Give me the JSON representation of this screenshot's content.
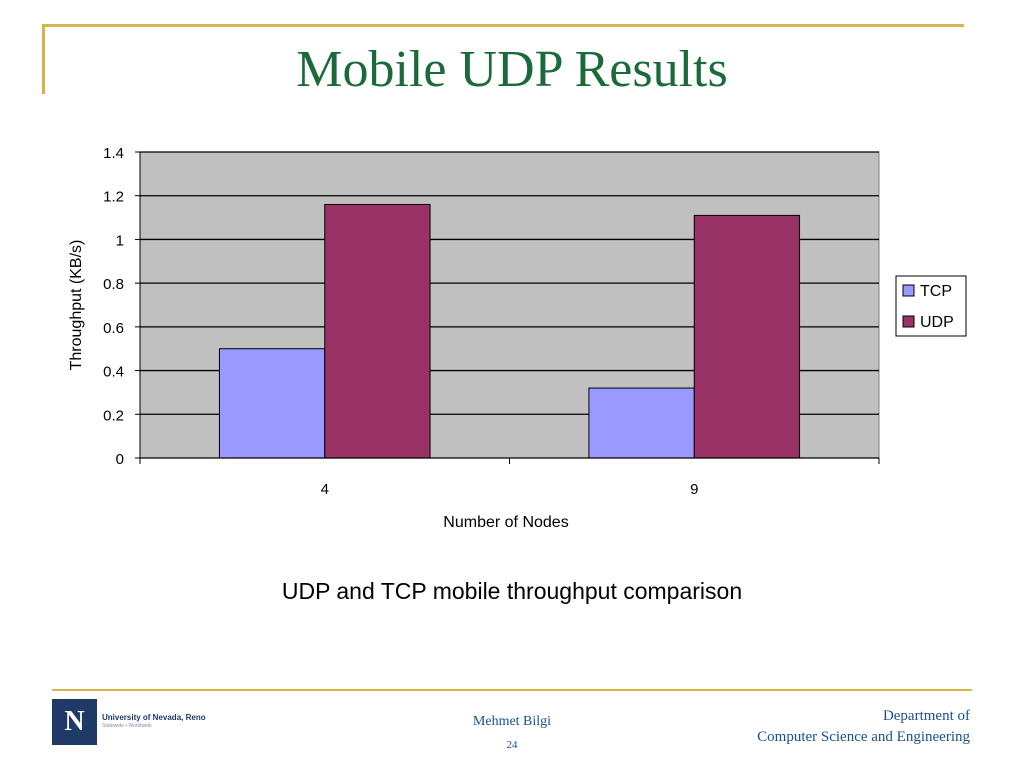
{
  "slide": {
    "title": "Mobile UDP Results",
    "caption": "UDP and TCP mobile throughput comparison"
  },
  "footer": {
    "logo_letter": "N",
    "logo_name": "University of Nevada, Reno",
    "logo_tagline": "Statewide • Worldwide",
    "presenter": "Mehmet Bilgi",
    "page_number": "24",
    "dept_line1": "Department of",
    "dept_line2": "Computer Science and Engineering"
  },
  "colors": {
    "title": "#1b6b3a",
    "accent_line": "#d9b44a",
    "footer_text": "#1a4f8f",
    "plot_background": "#c0c0c0"
  },
  "chart_data": {
    "type": "bar",
    "categories": [
      "4",
      "9"
    ],
    "series": [
      {
        "name": "TCP",
        "values": [
          0.5,
          0.32
        ],
        "color": "#9999ff"
      },
      {
        "name": "UDP",
        "values": [
          1.16,
          1.11
        ],
        "color": "#993366"
      }
    ],
    "xlabel": "Number of Nodes",
    "ylabel": "Throughput (KB/s)",
    "ylim": [
      0,
      1.4
    ],
    "yticks": [
      "0",
      "0.2",
      "0.4",
      "0.6",
      "0.8",
      "1",
      "1.2",
      "1.4"
    ],
    "grid": true,
    "legend": "right"
  }
}
